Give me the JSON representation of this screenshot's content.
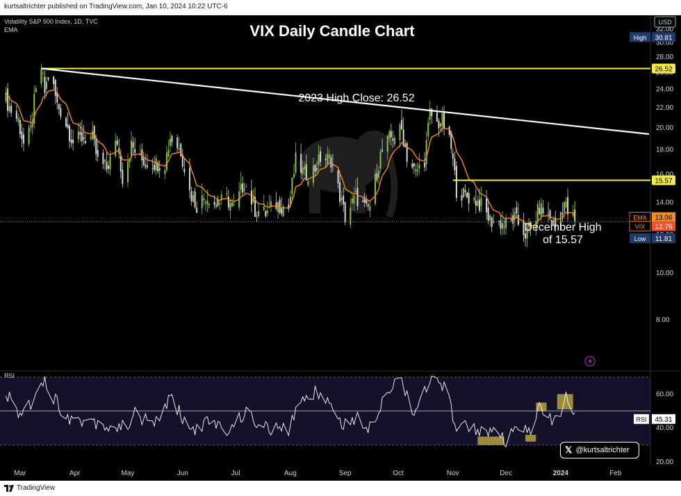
{
  "header": {
    "published_line": "kurtsaltrichter published on TradingView.com, Jan 10, 2024 10:22 UTC-6"
  },
  "symbol": {
    "description": "Volatility S&P 500 Index, 1D, TVC",
    "indicator": "EMA"
  },
  "rsi_panel": {
    "label": "RSI",
    "value_label": "RSI",
    "value": "45.31"
  },
  "footer": {
    "brand": "TradingView"
  },
  "credit": {
    "handle": "@kurtsaltrichter",
    "icon": "x-logo-icon"
  },
  "colors": {
    "background": "#000000",
    "up_candle": "#8bc34a",
    "down_candle": "#d9d9d9",
    "ema": "#f28c28",
    "horizontal_lines": "#f5e94a",
    "trendline": "#ffffff",
    "rsi_line": "#ffffff",
    "rsi_highlight": "#c9b445",
    "high_badge": "#1f3a6e",
    "low_badge": "#1f3a6e"
  },
  "chart_data": [
    {
      "type": "candlestick",
      "title": "VIX Daily Candle Chart",
      "currency": "USD",
      "y_scale": "log",
      "ylim": [
        6.4,
        33.5
      ],
      "y_ticks": [
        "32.00",
        "30.00",
        "28.00",
        "26.00",
        "24.00",
        "22.00",
        "20.00",
        "18.00",
        "16.00",
        "14.00",
        "12.00",
        "10.00",
        "8.00"
      ],
      "x_range": [
        "2023-02-20",
        "2024-02-20"
      ],
      "x_ticks": [
        {
          "label": "Mar",
          "date": "2023-03-01"
        },
        {
          "label": "Apr",
          "date": "2023-04-01"
        },
        {
          "label": "May",
          "date": "2023-05-01"
        },
        {
          "label": "Jun",
          "date": "2023-06-01"
        },
        {
          "label": "Jul",
          "date": "2023-07-01"
        },
        {
          "label": "Aug",
          "date": "2023-08-01"
        },
        {
          "label": "Sep",
          "date": "2023-09-01"
        },
        {
          "label": "Oct",
          "date": "2023-10-01"
        },
        {
          "label": "Nov",
          "date": "2023-11-01"
        },
        {
          "label": "Dec",
          "date": "2023-12-01"
        },
        {
          "label": "2024",
          "date": "2024-01-01"
        },
        {
          "label": "Feb",
          "date": "2024-02-01"
        }
      ],
      "close_series": [
        [
          "2023-02-21",
          22.87
        ],
        [
          "2023-02-24",
          21.67
        ],
        [
          "2023-02-28",
          20.7
        ],
        [
          "2023-03-03",
          18.49
        ],
        [
          "2023-03-07",
          19.59
        ],
        [
          "2023-03-09",
          22.61
        ],
        [
          "2023-03-13",
          26.52
        ],
        [
          "2023-03-15",
          23.73
        ],
        [
          "2023-03-17",
          25.51
        ],
        [
          "2023-03-20",
          24.12
        ],
        [
          "2023-03-22",
          22.26
        ],
        [
          "2023-03-24",
          21.74
        ],
        [
          "2023-03-28",
          19.97
        ],
        [
          "2023-03-31",
          18.7
        ],
        [
          "2023-04-05",
          19.08
        ],
        [
          "2023-04-11",
          18.97
        ],
        [
          "2023-04-14",
          17.07
        ],
        [
          "2023-04-19",
          16.46
        ],
        [
          "2023-04-25",
          18.76
        ],
        [
          "2023-04-28",
          15.78
        ],
        [
          "2023-05-03",
          18.34
        ],
        [
          "2023-05-08",
          17.19
        ],
        [
          "2023-05-12",
          17.03
        ],
        [
          "2023-05-17",
          16.87
        ],
        [
          "2023-05-22",
          16.91
        ],
        [
          "2023-05-25",
          19.14
        ],
        [
          "2023-05-31",
          17.94
        ],
        [
          "2023-06-05",
          14.73
        ],
        [
          "2023-06-09",
          13.83
        ],
        [
          "2023-06-14",
          14.5
        ],
        [
          "2023-06-20",
          13.88
        ],
        [
          "2023-06-26",
          14.25
        ],
        [
          "2023-06-30",
          13.59
        ],
        [
          "2023-07-06",
          15.44
        ],
        [
          "2023-07-12",
          13.54
        ],
        [
          "2023-07-18",
          13.3
        ],
        [
          "2023-07-24",
          13.91
        ],
        [
          "2023-07-31",
          13.63
        ],
        [
          "2023-08-04",
          17.1
        ],
        [
          "2023-08-09",
          15.99
        ],
        [
          "2023-08-15",
          16.46
        ],
        [
          "2023-08-18",
          17.3
        ],
        [
          "2023-08-24",
          17.2
        ],
        [
          "2023-08-29",
          14.45
        ],
        [
          "2023-09-01",
          13.09
        ],
        [
          "2023-09-07",
          14.4
        ],
        [
          "2023-09-13",
          13.48
        ],
        [
          "2023-09-15",
          13.79
        ],
        [
          "2023-09-21",
          17.54
        ],
        [
          "2023-09-26",
          18.94
        ],
        [
          "2023-10-03",
          19.78
        ],
        [
          "2023-10-06",
          17.45
        ],
        [
          "2023-10-11",
          16.09
        ],
        [
          "2023-10-16",
          17.21
        ],
        [
          "2023-10-19",
          21.4
        ],
        [
          "2023-10-23",
          20.37
        ],
        [
          "2023-10-26",
          20.68
        ],
        [
          "2023-10-31",
          18.14
        ],
        [
          "2023-11-03",
          14.91
        ],
        [
          "2023-11-08",
          14.45
        ],
        [
          "2023-11-14",
          14.16
        ],
        [
          "2023-11-17",
          13.8
        ],
        [
          "2023-11-22",
          12.85
        ],
        [
          "2023-11-28",
          12.69
        ],
        [
          "2023-12-01",
          12.63
        ],
        [
          "2023-12-06",
          12.97
        ],
        [
          "2023-12-12",
          12.07
        ],
        [
          "2023-12-15",
          12.28
        ],
        [
          "2023-12-20",
          13.67
        ],
        [
          "2023-12-26",
          12.99
        ],
        [
          "2023-12-29",
          12.45
        ],
        [
          "2024-01-03",
          14.04
        ],
        [
          "2024-01-05",
          13.35
        ],
        [
          "2024-01-09",
          12.76
        ]
      ],
      "ema_last": "13.06",
      "last_close": "12.76",
      "high_label": "High",
      "high_value": "30.81",
      "low_label": "Low",
      "low_value": "11.81",
      "ema_label": "EMA",
      "symbol_label": "VIX",
      "horizontal_lines": [
        {
          "value": 26.52,
          "label": "26.52",
          "start": "2023-03-13"
        },
        {
          "value": 15.57,
          "label": "15.57",
          "start": "2023-11-01"
        }
      ],
      "trendline": {
        "from": [
          "2023-03-13",
          26.52
        ],
        "to": [
          "2024-02-20",
          19.4
        ]
      },
      "annotations": [
        {
          "text": "2023 High Close: 26.52"
        },
        {
          "text": "December High"
        },
        {
          "text": "of 15.57"
        }
      ]
    },
    {
      "type": "line",
      "title": "RSI",
      "ylim": [
        18,
        72
      ],
      "y_ticks": [
        "60.00",
        "40.00",
        "20.00"
      ],
      "bands": [
        70,
        50,
        30
      ],
      "last_value": "45.31",
      "values": [
        [
          "2023-02-21",
          60
        ],
        [
          "2023-03-01",
          48
        ],
        [
          "2023-03-08",
          56
        ],
        [
          "2023-03-13",
          71
        ],
        [
          "2023-03-17",
          63
        ],
        [
          "2023-03-24",
          52
        ],
        [
          "2023-03-31",
          44
        ],
        [
          "2023-04-10",
          45
        ],
        [
          "2023-04-20",
          41
        ],
        [
          "2023-04-28",
          40
        ],
        [
          "2023-05-05",
          48
        ],
        [
          "2023-05-15",
          42
        ],
        [
          "2023-05-26",
          58
        ],
        [
          "2023-06-05",
          38
        ],
        [
          "2023-06-15",
          43
        ],
        [
          "2023-06-28",
          39
        ],
        [
          "2023-07-06",
          49
        ],
        [
          "2023-07-18",
          40
        ],
        [
          "2023-07-31",
          38
        ],
        [
          "2023-08-07",
          58
        ],
        [
          "2023-08-18",
          62
        ],
        [
          "2023-08-30",
          43
        ],
        [
          "2023-09-08",
          45
        ],
        [
          "2023-09-15",
          41
        ],
        [
          "2023-09-26",
          65
        ],
        [
          "2023-10-03",
          68
        ],
        [
          "2023-10-10",
          50
        ],
        [
          "2023-10-20",
          68
        ],
        [
          "2023-10-27",
          64
        ],
        [
          "2023-11-03",
          42
        ],
        [
          "2023-11-15",
          40
        ],
        [
          "2023-11-24",
          36
        ],
        [
          "2023-12-01",
          32
        ],
        [
          "2023-12-08",
          40
        ],
        [
          "2023-12-14",
          36
        ],
        [
          "2023-12-20",
          54
        ],
        [
          "2023-12-28",
          42
        ],
        [
          "2024-01-04",
          57
        ],
        [
          "2024-01-09",
          45.31
        ]
      ],
      "highlights": [
        {
          "from": "2023-11-15",
          "to": "2023-11-30",
          "low": 30,
          "high": 35
        },
        {
          "from": "2023-12-12",
          "to": "2023-12-18",
          "low": 32,
          "high": 36
        },
        {
          "from": "2023-12-18",
          "to": "2023-12-24",
          "low": 50,
          "high": 55
        },
        {
          "from": "2023-12-30",
          "to": "2024-01-08",
          "low": 51,
          "high": 60
        }
      ]
    }
  ]
}
